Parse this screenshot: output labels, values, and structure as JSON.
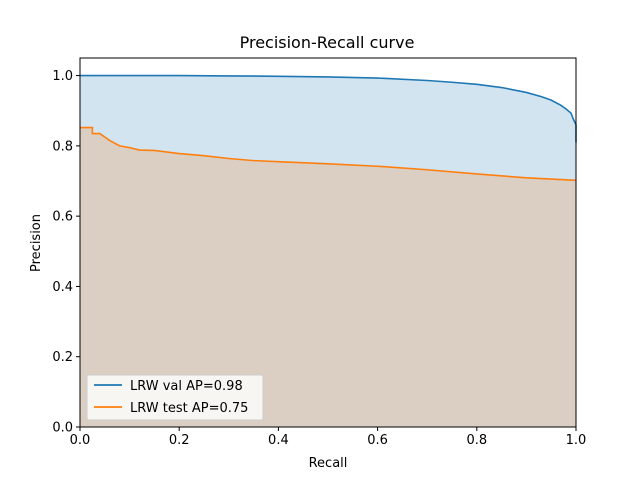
{
  "chart_data": {
    "type": "area",
    "title": "Precision-Recall curve",
    "xlabel": "Recall",
    "ylabel": "Precision",
    "xlim": [
      0.0,
      1.0
    ],
    "ylim": [
      0.0,
      1.05
    ],
    "xticks": [
      "0.0",
      "0.2",
      "0.4",
      "0.6",
      "0.8",
      "1.0"
    ],
    "yticks": [
      "0.0",
      "0.2",
      "0.4",
      "0.6",
      "0.8",
      "1.0"
    ],
    "grid": false,
    "legend_position": "lower-left",
    "series": [
      {
        "name": "LRW val AP=0.98",
        "color": "#1f77b4",
        "fill": "#1f77b4",
        "points": [
          [
            0.0,
            1.0
          ],
          [
            0.1,
            1.0
          ],
          [
            0.2,
            1.0
          ],
          [
            0.3,
            0.999
          ],
          [
            0.4,
            0.998
          ],
          [
            0.5,
            0.996
          ],
          [
            0.6,
            0.993
          ],
          [
            0.7,
            0.986
          ],
          [
            0.75,
            0.981
          ],
          [
            0.8,
            0.975
          ],
          [
            0.85,
            0.966
          ],
          [
            0.9,
            0.952
          ],
          [
            0.93,
            0.94
          ],
          [
            0.95,
            0.93
          ],
          [
            0.97,
            0.915
          ],
          [
            0.98,
            0.905
          ],
          [
            0.99,
            0.893
          ],
          [
            0.995,
            0.875
          ],
          [
            1.0,
            0.86
          ],
          [
            1.0,
            0.81
          ]
        ]
      },
      {
        "name": "LRW test AP=0.75",
        "color": "#ff7f0e",
        "fill": "#ff7f0e",
        "points": [
          [
            0.0,
            0.852
          ],
          [
            0.025,
            0.852
          ],
          [
            0.025,
            0.835
          ],
          [
            0.04,
            0.835
          ],
          [
            0.06,
            0.815
          ],
          [
            0.08,
            0.8
          ],
          [
            0.1,
            0.795
          ],
          [
            0.12,
            0.788
          ],
          [
            0.15,
            0.787
          ],
          [
            0.2,
            0.778
          ],
          [
            0.25,
            0.772
          ],
          [
            0.3,
            0.764
          ],
          [
            0.35,
            0.758
          ],
          [
            0.4,
            0.755
          ],
          [
            0.5,
            0.749
          ],
          [
            0.6,
            0.742
          ],
          [
            0.7,
            0.732
          ],
          [
            0.8,
            0.72
          ],
          [
            0.9,
            0.709
          ],
          [
            1.0,
            0.702
          ]
        ]
      }
    ]
  }
}
